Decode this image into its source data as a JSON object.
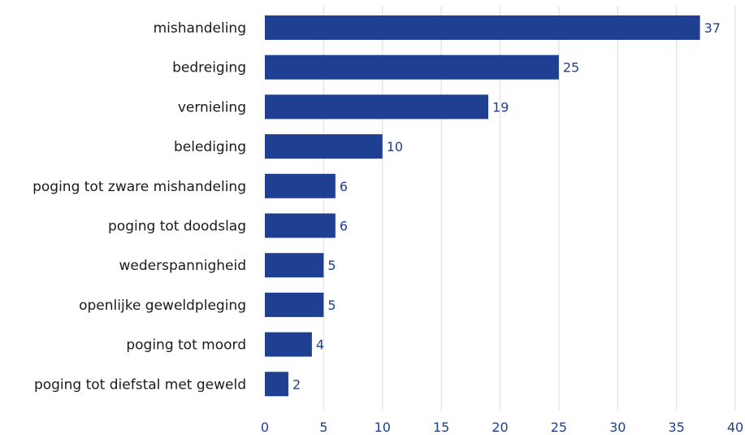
{
  "chart_data": {
    "type": "bar",
    "orientation": "horizontal",
    "categories": [
      "mishandeling",
      "bedreiging",
      "vernieling",
      "belediging",
      "poging tot zware mishandeling",
      "poging tot doodslag",
      "wederspannigheid",
      "openlijke geweldpleging",
      "poging tot moord",
      "poging tot diefstal met geweld"
    ],
    "values": [
      37,
      25,
      19,
      10,
      6,
      6,
      5,
      5,
      4,
      2
    ],
    "xlim": [
      0,
      40
    ],
    "xticks": [
      0,
      5,
      10,
      15,
      20,
      25,
      30,
      35,
      40
    ],
    "grid": "vertical",
    "title": "",
    "xlabel": "",
    "ylabel": "",
    "colors": {
      "bar": "#1f3f93",
      "grid": "#e6e6e6",
      "value_text": "#1f3f8f",
      "tick_text": "#1f3f8f",
      "category_text": "#1a1a1a"
    }
  }
}
